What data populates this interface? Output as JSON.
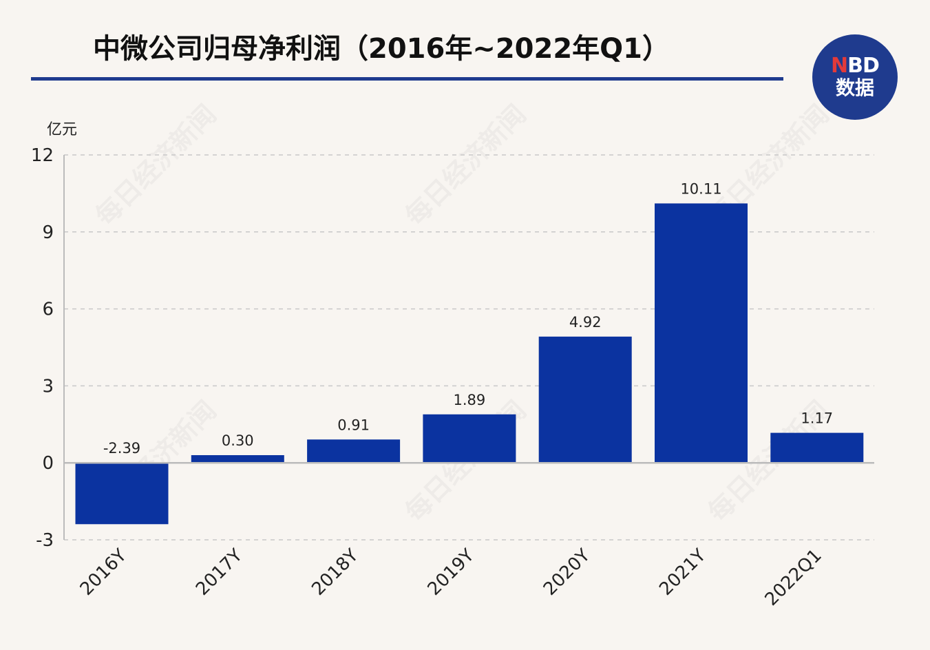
{
  "header": {
    "title": "中微公司归母净利润（2016年~2022年Q1）"
  },
  "logo": {
    "brand_n": "N",
    "brand_rest": "BD",
    "sub": "数据"
  },
  "watermark_text": "每日经济新闻",
  "colors": {
    "bar": "#0b33a0",
    "rule": "#1f3b8e",
    "grid": "#c8c8c8",
    "axis": "#bbbbbb"
  },
  "chart_data": {
    "type": "bar",
    "unit": "亿元",
    "categories": [
      "2016Y",
      "2017Y",
      "2018Y",
      "2019Y",
      "2020Y",
      "2021Y",
      "2022Q1"
    ],
    "values": [
      -2.39,
      0.3,
      0.91,
      1.89,
      4.92,
      10.11,
      1.17
    ],
    "value_labels": [
      "-2.39",
      "0.30",
      "0.91",
      "1.89",
      "4.92",
      "10.11",
      "1.17"
    ],
    "y_ticks": [
      -3,
      0,
      3,
      6,
      9,
      12
    ],
    "ylim": [
      -3,
      12
    ],
    "grid": true,
    "grid_style": "dashed",
    "legend": "none",
    "x_label_rotation": -45
  }
}
